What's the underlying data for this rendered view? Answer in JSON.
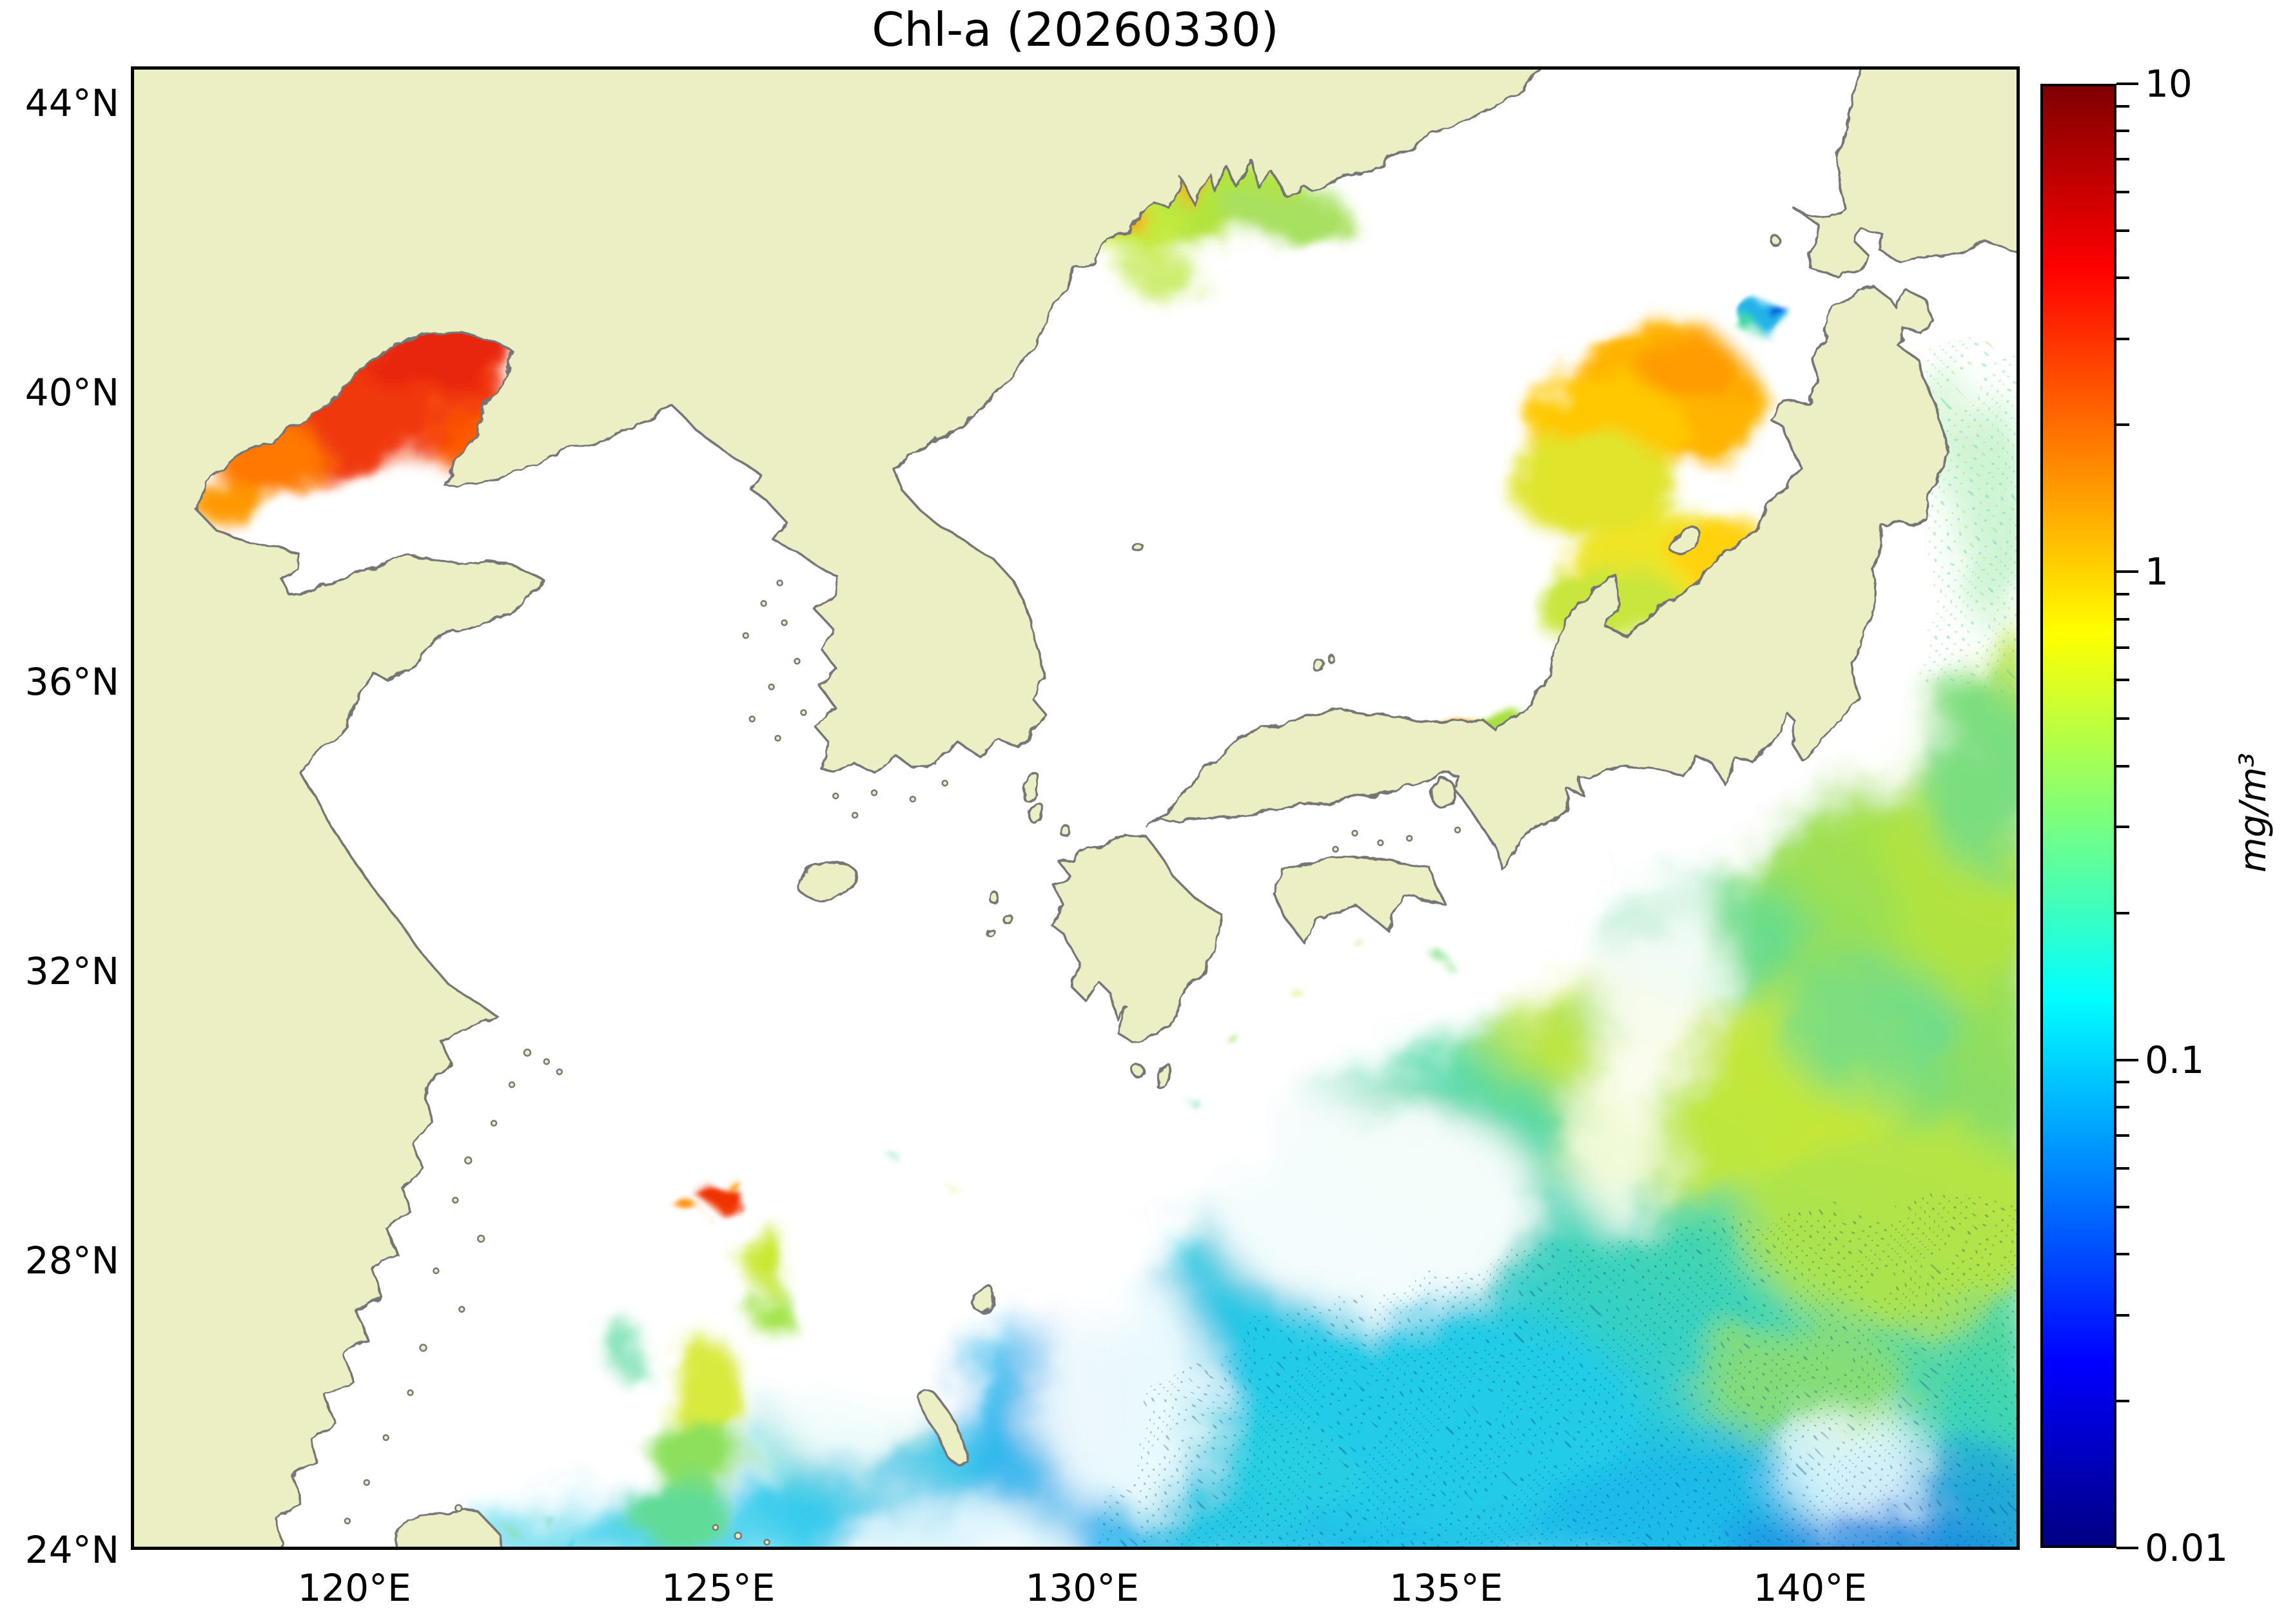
{
  "chart_data": {
    "type": "heatmap",
    "title": "Chl-a (20260330)",
    "variable": "Chlorophyll-a concentration from satellite ocean color",
    "date_shown_in_title": "20260330",
    "grid": false,
    "x_axis": {
      "label_format": "degrees east",
      "range": [
        116.93,
        142.88
      ],
      "ticks": [
        {
          "value": 120,
          "label": "120°E"
        },
        {
          "value": 125,
          "label": "125°E"
        },
        {
          "value": 130,
          "label": "130°E"
        },
        {
          "value": 135,
          "label": "135°E"
        },
        {
          "value": 140,
          "label": "140°E"
        }
      ]
    },
    "y_axis": {
      "label_format": "degrees north",
      "range": [
        24.0,
        44.51
      ],
      "ticks": [
        {
          "value": 44,
          "label": "44°N"
        },
        {
          "value": 40,
          "label": "40°N"
        },
        {
          "value": 36,
          "label": "36°N"
        },
        {
          "value": 32,
          "label": "32°N"
        },
        {
          "value": 28,
          "label": "28°N"
        },
        {
          "value": 24,
          "label": "24°N"
        }
      ]
    },
    "colorbar": {
      "unit": "mg/m³",
      "scale": "log",
      "min": 0.01,
      "max": 10,
      "colormap": "jet",
      "position": "right",
      "ticks": [
        {
          "value": 10,
          "label": "10"
        },
        {
          "value": 1,
          "label": "1"
        },
        {
          "value": 0.1,
          "label": "0.1"
        },
        {
          "value": 0.01,
          "label": "0.01"
        }
      ],
      "gradient_stops": [
        {
          "color": "#800000",
          "pos": "0%"
        },
        {
          "color": "#ff0000",
          "pos": "12.5%"
        },
        {
          "color": "#ff9400",
          "pos": "27%"
        },
        {
          "color": "#ffff00",
          "pos": "37.5%"
        },
        {
          "color": "#7dff7a",
          "pos": "50%"
        },
        {
          "color": "#00ffff",
          "pos": "62.5%"
        },
        {
          "color": "#0000ff",
          "pos": "87.5%"
        },
        {
          "color": "#000083",
          "pos": "100%"
        }
      ]
    },
    "map_style": {
      "land_color": "#ecefc4",
      "coastline_color": "#757575",
      "no_data_ocean_color": "#ffffff"
    },
    "regions": [
      {
        "name": "Bohai Sea / Liaodong Bay bloom",
        "lon": [
          118.0,
          122.2
        ],
        "lat": [
          38.4,
          41.0
        ],
        "chl_mg_m3": [
          4,
          10
        ],
        "appearance": "intense red-orange"
      },
      {
        "name": "Peter the Great Bay (Vladivostok) coastal bloom",
        "lon": [
          130.5,
          133.5
        ],
        "lat": [
          42.2,
          43.3
        ],
        "chl_mg_m3": [
          0.5,
          2
        ],
        "appearance": "yellow-green with orange spots"
      },
      {
        "name": "Sea of Japan off NW Honshu (Aomori/Akita), northern patch",
        "lon": [
          138.5,
          141.0
        ],
        "lat": [
          39.5,
          41.6
        ],
        "chl_mg_m3": [
          1,
          3
        ],
        "appearance": "orange core, yellow fringe"
      },
      {
        "name": "Sea of Japan off NW Honshu, southern patch",
        "lon": [
          138.3,
          141.2
        ],
        "lat": [
          37.5,
          39.3
        ],
        "chl_mg_m3": [
          0.5,
          1.5
        ],
        "appearance": "yellow / yellow-green"
      },
      {
        "name": "Small cyan-blue patch near Tsugaru / Mutsu Bay",
        "lon": [
          140.8,
          141.6
        ],
        "lat": [
          41.0,
          41.6
        ],
        "chl_mg_m3": [
          0.03,
          0.15
        ],
        "appearance": "cyan and blue"
      },
      {
        "name": "Wakasa / San-in coastal bloom",
        "lon": [
          134.8,
          136.6
        ],
        "lat": [
          35.6,
          36.3
        ],
        "chl_mg_m3": [
          0.8,
          2
        ],
        "appearance": "small orange-green streak"
      },
      {
        "name": "Kuroshio-Oyashio mixed water, Pacific east of Japan",
        "lon": [
          131.5,
          142.9
        ],
        "lat": [
          26.5,
          36.0
        ],
        "chl_mg_m3": [
          0.15,
          0.7
        ],
        "appearance": "marbled yellow-green / green / teal with white cloud gaps and dark speckle"
      },
      {
        "name": "Subtropical Pacific, southern band",
        "lon": [
          126.0,
          142.9
        ],
        "lat": [
          24.0,
          27.5
        ],
        "chl_mg_m3": [
          0.07,
          0.2
        ],
        "appearance": "cyan-turquoise with blue speckle, deeper blue in SE corner"
      },
      {
        "name": "East China Sea shelf patches NW of Okinawa",
        "lon": [
          123.8,
          126.2
        ],
        "lat": [
          24.5,
          29.6
        ],
        "chl_mg_m3": [
          0.3,
          1.0
        ],
        "appearance": "scattered yellow-green / green"
      },
      {
        "name": "Small intense spot near 125°E 29°N",
        "lon": [
          124.8,
          125.2
        ],
        "lat": [
          28.8,
          29.1
        ],
        "chl_mg_m3": [
          3,
          8
        ],
        "appearance": "tiny red-orange spot"
      }
    ],
    "no_data_regions": "Yellow Sea, most of Sea of Japan interior, Taiwan Strait and a wide band along the Kuroshio south of Japan are white (no retrieval / clouds)"
  },
  "layout_text": {
    "title": "Chl-a (20260330)"
  }
}
